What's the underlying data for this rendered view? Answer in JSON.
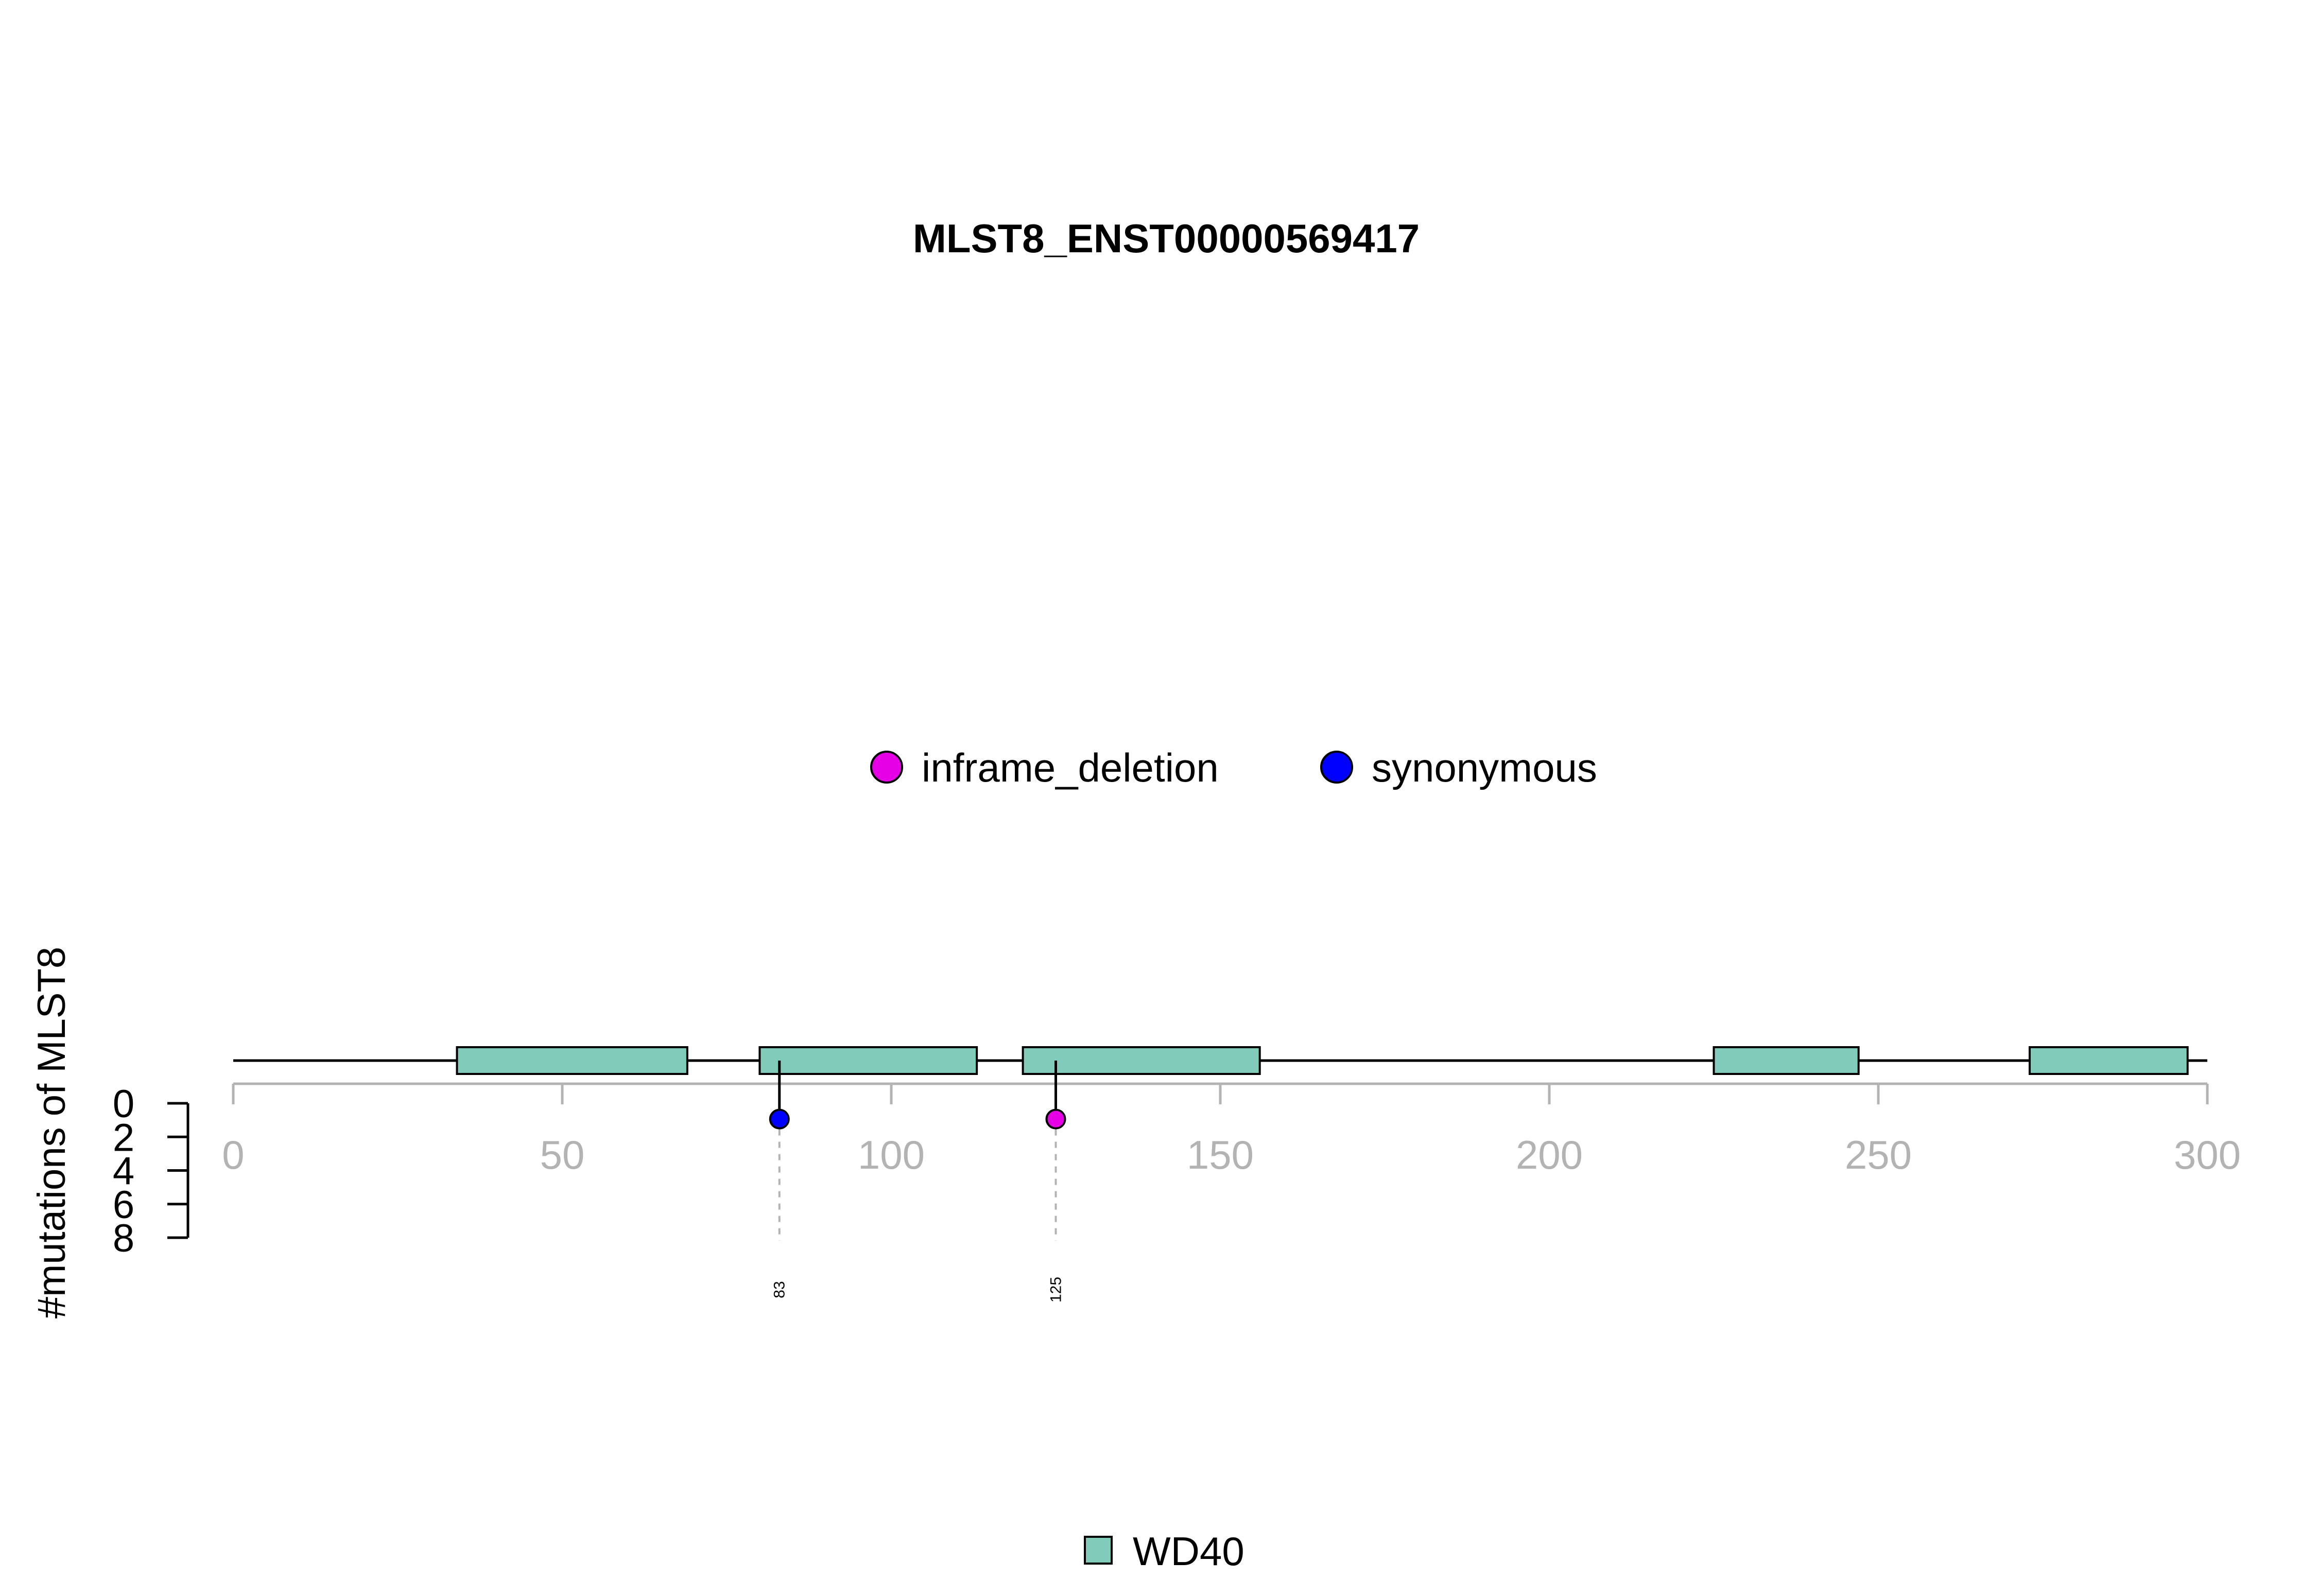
{
  "chart_data": {
    "type": "scatter",
    "title": "MLST8_ENST00000569417",
    "ylabel": "#mutations of MLST8",
    "x_axis": {
      "range": [
        0,
        300
      ],
      "ticks": [
        0,
        50,
        100,
        150,
        200,
        250,
        300
      ],
      "tick_labels": [
        "0",
        "50",
        "100",
        "150",
        "200",
        "250",
        "300"
      ]
    },
    "y_axis": {
      "range": [
        0,
        8
      ],
      "ticks": [
        0,
        2,
        4,
        6,
        8
      ],
      "tick_labels": [
        "0",
        "2",
        "4",
        "6",
        "8"
      ],
      "direction": "downward"
    },
    "protein_length": 300,
    "domains": [
      {
        "name": "WD40",
        "start": 34,
        "end": 69
      },
      {
        "name": "WD40",
        "start": 80,
        "end": 113
      },
      {
        "name": "WD40",
        "start": 120,
        "end": 156
      },
      {
        "name": "WD40",
        "start": 225,
        "end": 247
      },
      {
        "name": "WD40",
        "start": 273,
        "end": 297
      }
    ],
    "mutations": [
      {
        "position": 83,
        "count": 1,
        "type": "synonymous",
        "label": "83"
      },
      {
        "position": 125,
        "count": 1,
        "type": "inframe_deletion",
        "label": "125"
      }
    ],
    "mutation_legend": [
      {
        "label": "inframe_deletion",
        "color": "#e600e6"
      },
      {
        "label": "synonymous",
        "color": "#0000ff"
      }
    ],
    "domain_legend": [
      {
        "label": "WD40",
        "color": "#80cbb9"
      }
    ]
  },
  "colors": {
    "axis_gray": "#b3b3b3",
    "domain_fill": "#80cbb9",
    "backbone": "#000000"
  }
}
